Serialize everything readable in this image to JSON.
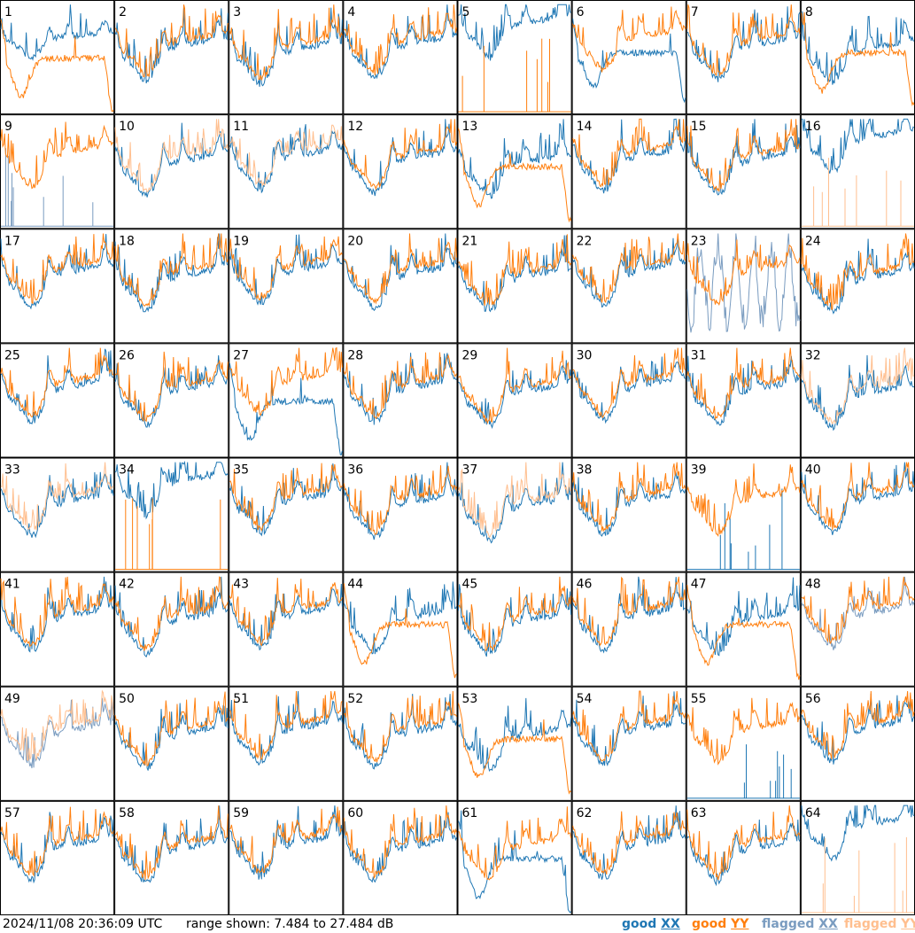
{
  "chart_data": {
    "type": "line",
    "grid": {
      "rows": 8,
      "cols": 8
    },
    "panels": [
      {
        "label": "1",
        "xx": "good",
        "yy": "good",
        "variant": "bowl"
      },
      {
        "label": "2",
        "xx": "good",
        "yy": "good",
        "variant": "normal"
      },
      {
        "label": "3",
        "xx": "good",
        "yy": "good",
        "variant": "normal"
      },
      {
        "label": "4",
        "xx": "good",
        "yy": "good",
        "variant": "normal"
      },
      {
        "label": "5",
        "xx": "good",
        "yy": "good",
        "variant": "yy_spikes"
      },
      {
        "label": "6",
        "xx": "good",
        "yy": "good",
        "variant": "xx_dip"
      },
      {
        "label": "7",
        "xx": "good",
        "yy": "good",
        "variant": "normal"
      },
      {
        "label": "8",
        "xx": "good",
        "yy": "good",
        "variant": "yy_bowl"
      },
      {
        "label": "9",
        "xx": "flagged",
        "yy": "good",
        "variant": "xx_spikes"
      },
      {
        "label": "10",
        "xx": "good",
        "yy": "flagged",
        "variant": "normal"
      },
      {
        "label": "11",
        "xx": "good",
        "yy": "flagged",
        "variant": "normal"
      },
      {
        "label": "12",
        "xx": "good",
        "yy": "good",
        "variant": "normal"
      },
      {
        "label": "13",
        "xx": "good",
        "yy": "good",
        "variant": "yy_bowl"
      },
      {
        "label": "14",
        "xx": "good",
        "yy": "good",
        "variant": "normal"
      },
      {
        "label": "15",
        "xx": "good",
        "yy": "good",
        "variant": "normal"
      },
      {
        "label": "16",
        "xx": "good",
        "yy": "flagged",
        "variant": "yy_spikes"
      },
      {
        "label": "17",
        "xx": "good",
        "yy": "good",
        "variant": "normal"
      },
      {
        "label": "18",
        "xx": "good",
        "yy": "good",
        "variant": "normal"
      },
      {
        "label": "19",
        "xx": "good",
        "yy": "good",
        "variant": "normal"
      },
      {
        "label": "20",
        "xx": "good",
        "yy": "good",
        "variant": "normal"
      },
      {
        "label": "21",
        "xx": "good",
        "yy": "good",
        "variant": "normal"
      },
      {
        "label": "22",
        "xx": "good",
        "yy": "good",
        "variant": "normal"
      },
      {
        "label": "23",
        "xx": "flagged",
        "yy": "good",
        "variant": "xx_noise"
      },
      {
        "label": "24",
        "xx": "good",
        "yy": "good",
        "variant": "normal"
      },
      {
        "label": "25",
        "xx": "good",
        "yy": "good",
        "variant": "normal"
      },
      {
        "label": "26",
        "xx": "good",
        "yy": "good",
        "variant": "normal"
      },
      {
        "label": "27",
        "xx": "good",
        "yy": "good",
        "variant": "xx_bowl"
      },
      {
        "label": "28",
        "xx": "good",
        "yy": "good",
        "variant": "normal"
      },
      {
        "label": "29",
        "xx": "good",
        "yy": "good",
        "variant": "normal"
      },
      {
        "label": "30",
        "xx": "good",
        "yy": "good",
        "variant": "normal"
      },
      {
        "label": "31",
        "xx": "good",
        "yy": "good",
        "variant": "normal"
      },
      {
        "label": "32",
        "xx": "good",
        "yy": "flagged",
        "variant": "normal"
      },
      {
        "label": "33",
        "xx": "good",
        "yy": "flagged",
        "variant": "normal"
      },
      {
        "label": "34",
        "xx": "good",
        "yy": "good",
        "variant": "yy_spikes"
      },
      {
        "label": "35",
        "xx": "good",
        "yy": "good",
        "variant": "normal"
      },
      {
        "label": "36",
        "xx": "good",
        "yy": "good",
        "variant": "normal"
      },
      {
        "label": "37",
        "xx": "good",
        "yy": "flagged",
        "variant": "normal"
      },
      {
        "label": "38",
        "xx": "good",
        "yy": "good",
        "variant": "normal"
      },
      {
        "label": "39",
        "xx": "good",
        "yy": "good",
        "variant": "xx_spikes"
      },
      {
        "label": "40",
        "xx": "good",
        "yy": "good",
        "variant": "normal"
      },
      {
        "label": "41",
        "xx": "good",
        "yy": "good",
        "variant": "normal"
      },
      {
        "label": "42",
        "xx": "good",
        "yy": "good",
        "variant": "normal"
      },
      {
        "label": "43",
        "xx": "good",
        "yy": "good",
        "variant": "normal"
      },
      {
        "label": "44",
        "xx": "good",
        "yy": "good",
        "variant": "yy_bowl"
      },
      {
        "label": "45",
        "xx": "good",
        "yy": "good",
        "variant": "normal"
      },
      {
        "label": "46",
        "xx": "good",
        "yy": "good",
        "variant": "normal"
      },
      {
        "label": "47",
        "xx": "good",
        "yy": "good",
        "variant": "yy_bowl"
      },
      {
        "label": "48",
        "xx": "flagged",
        "yy": "good",
        "variant": "normal"
      },
      {
        "label": "49",
        "xx": "flagged",
        "yy": "flagged",
        "variant": "normal"
      },
      {
        "label": "50",
        "xx": "good",
        "yy": "good",
        "variant": "normal"
      },
      {
        "label": "51",
        "xx": "good",
        "yy": "good",
        "variant": "normal"
      },
      {
        "label": "52",
        "xx": "good",
        "yy": "good",
        "variant": "normal"
      },
      {
        "label": "53",
        "xx": "good",
        "yy": "good",
        "variant": "yy_bowl"
      },
      {
        "label": "54",
        "xx": "good",
        "yy": "good",
        "variant": "normal"
      },
      {
        "label": "55",
        "xx": "good",
        "yy": "good",
        "variant": "xx_spikes"
      },
      {
        "label": "56",
        "xx": "good",
        "yy": "good",
        "variant": "normal"
      },
      {
        "label": "57",
        "xx": "good",
        "yy": "good",
        "variant": "normal"
      },
      {
        "label": "58",
        "xx": "good",
        "yy": "good",
        "variant": "normal"
      },
      {
        "label": "59",
        "xx": "good",
        "yy": "good",
        "variant": "normal"
      },
      {
        "label": "60",
        "xx": "good",
        "yy": "good",
        "variant": "normal"
      },
      {
        "label": "61",
        "xx": "good",
        "yy": "good",
        "variant": "xx_bowl"
      },
      {
        "label": "62",
        "xx": "good",
        "yy": "good",
        "variant": "normal"
      },
      {
        "label": "63",
        "xx": "good",
        "yy": "good",
        "variant": "normal"
      },
      {
        "label": "64",
        "xx": "good",
        "yy": "flagged",
        "variant": "yy_spikes"
      }
    ],
    "range": {
      "min": 7.484,
      "max": 27.484,
      "units": "dB"
    }
  },
  "footer": {
    "timestamp": "2024/11/08 20:36:09 UTC",
    "range_text": "range shown: 7.484 to 27.484 dB"
  },
  "legend": [
    {
      "kind": "good",
      "pol": "XX",
      "color": "#1f77b4"
    },
    {
      "kind": "good",
      "pol": "YY",
      "color": "#ff7f0e"
    },
    {
      "kind": "flagged",
      "pol": "XX",
      "color": "#7a9cc0"
    },
    {
      "kind": "flagged",
      "pol": "YY",
      "color": "#ffbf8f"
    }
  ],
  "colors": {
    "good_xx": "#1f77b4",
    "good_yy": "#ff7f0e",
    "flagged_xx": "#7a9cc0",
    "flagged_yy": "#ffbf8f",
    "border": "#000000"
  }
}
